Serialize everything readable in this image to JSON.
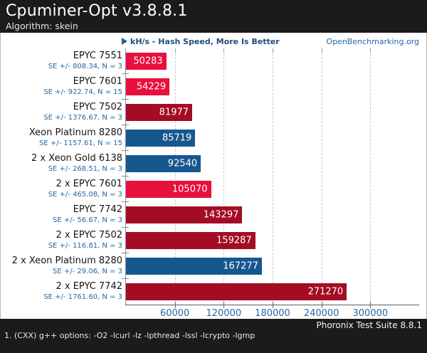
{
  "header": {
    "title": "Cpuminer-Opt v3.8.8.1",
    "subtitle": "Algorithm: skein"
  },
  "chart": {
    "metric_label": "kH/s - Hash Speed, More Is Better",
    "watermark": "OpenBenchmarking.org"
  },
  "colors": {
    "epyc_gen1_red": "#e8103c",
    "epyc_gen2_dark_red": "#a30d24",
    "xeon_blue": "#17578f",
    "accent_text_blue": "#2368a4",
    "metric_navy": "#1f4e79",
    "header_bg": "#1b1b1b"
  },
  "chart_data": {
    "type": "bar",
    "orientation": "horizontal",
    "title": "Cpuminer-Opt v3.8.8.1 — Algorithm: skein",
    "xlabel": "kH/s (Hash Speed)",
    "categories": [
      "EPYC 7551",
      "EPYC 7601",
      "EPYC 7502",
      "Xeon Platinum 8280",
      "2 x Xeon Gold 6138",
      "2 x EPYC 7601",
      "EPYC 7742",
      "2 x EPYC 7502",
      "2 x Xeon Platinum 8280",
      "2 x EPYC 7742"
    ],
    "values": [
      50283,
      54229,
      81977,
      85719,
      92540,
      105070,
      143297,
      159287,
      167277,
      271270
    ],
    "se_labels": [
      "SE +/- 808.34, N = 3",
      "SE +/- 922.74, N = 15",
      "SE +/- 1376.67, N = 3",
      "SE +/- 1157.61, N = 15",
      "SE +/- 268.51, N = 3",
      "SE +/- 465.08, N = 3",
      "SE +/- 56.67, N = 3",
      "SE +/- 116.81, N = 3",
      "SE +/- 29.06, N = 3",
      "SE +/- 1761.60, N = 3"
    ],
    "bar_colors": [
      "#e8103c",
      "#e8103c",
      "#a30d24",
      "#17578f",
      "#17578f",
      "#e8103c",
      "#a30d24",
      "#a30d24",
      "#17578f",
      "#a30d24"
    ],
    "xticks": [
      60000,
      120000,
      180000,
      240000,
      300000
    ],
    "xtick_labels": [
      "60000",
      "120000",
      "180000",
      "240000",
      "300000"
    ],
    "xlim": [
      0,
      360000
    ],
    "grid": "vertical-dashed",
    "legend": "none",
    "value_labels": "inside-end"
  },
  "footer": {
    "suite": "Phoronix Test Suite 8.8.1",
    "note": "1. (CXX) g++ options: -O2 -lcurl -lz -lpthread -lssl -lcrypto -lgmp"
  }
}
